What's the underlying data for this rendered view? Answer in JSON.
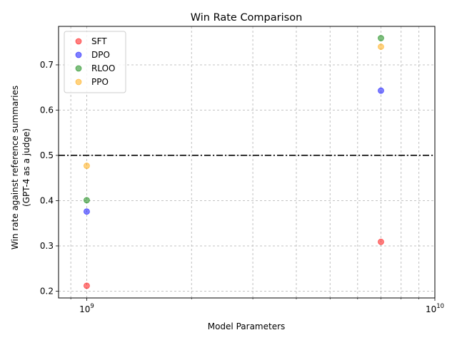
{
  "chart_data": {
    "type": "scatter",
    "title": "Win Rate Comparison",
    "xlabel": "Model Parameters",
    "ylabel_lines": [
      "Win rate against reference summaries",
      "(GPT-4 as a judge)"
    ],
    "x_scale": "log",
    "xlim": [
      830000000,
      10000000000
    ],
    "ylim": [
      0.185,
      0.785
    ],
    "x_major_ticks": [
      {
        "value": 1000000000,
        "base": "10",
        "exp": "9"
      },
      {
        "value": 10000000000,
        "base": "10",
        "exp": "10"
      }
    ],
    "x_minor_ticks": [
      900000000,
      2000000000,
      3000000000,
      4000000000,
      5000000000,
      6000000000,
      7000000000,
      8000000000,
      9000000000
    ],
    "y_ticks": [
      0.2,
      0.3,
      0.4,
      0.5,
      0.6,
      0.7
    ],
    "y_tick_labels": [
      "0.2",
      "0.3",
      "0.4",
      "0.5",
      "0.6",
      "0.7"
    ],
    "grid": true,
    "legend_position": "top-left",
    "reference_line": {
      "y": 0.5,
      "style": "dash-dot",
      "color": "#000000"
    },
    "series": [
      {
        "name": "SFT",
        "color": "#ff0000",
        "points": [
          {
            "x": 1000000000,
            "y": 0.212
          },
          {
            "x": 7000000000,
            "y": 0.309
          }
        ]
      },
      {
        "name": "DPO",
        "color": "#0000ff",
        "points": [
          {
            "x": 1000000000,
            "y": 0.376
          },
          {
            "x": 7000000000,
            "y": 0.643
          }
        ]
      },
      {
        "name": "RLOO",
        "color": "#008000",
        "points": [
          {
            "x": 1000000000,
            "y": 0.401
          },
          {
            "x": 7000000000,
            "y": 0.759
          }
        ]
      },
      {
        "name": "PPO",
        "color": "#ffa500",
        "points": [
          {
            "x": 1000000000,
            "y": 0.477
          },
          {
            "x": 7000000000,
            "y": 0.74
          }
        ]
      }
    ]
  }
}
